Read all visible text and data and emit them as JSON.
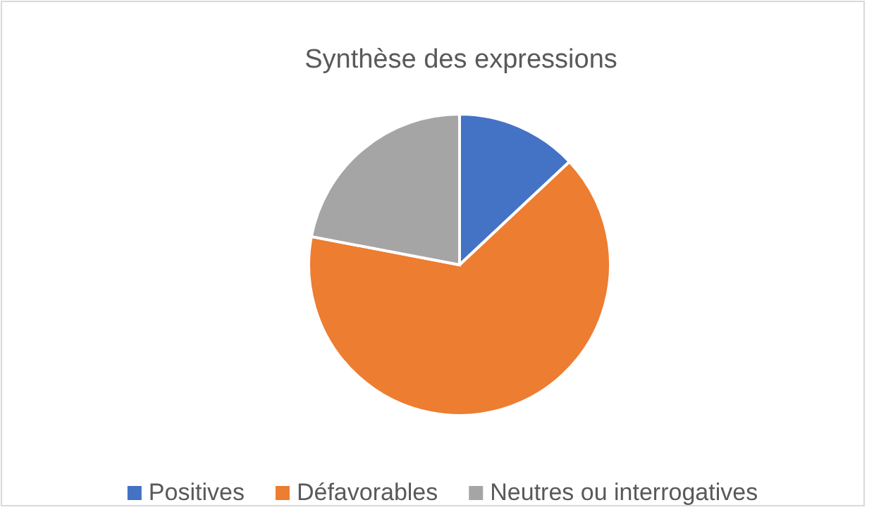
{
  "chart_data": {
    "type": "pie",
    "title": "Synthèse des expressions",
    "categories": [
      "Positives",
      "Défavorables",
      "Neutres ou interrogatives"
    ],
    "values": [
      13,
      65,
      22
    ],
    "colors": [
      "#4472c4",
      "#ed7d31",
      "#a5a5a5"
    ],
    "legend": "bottom"
  }
}
